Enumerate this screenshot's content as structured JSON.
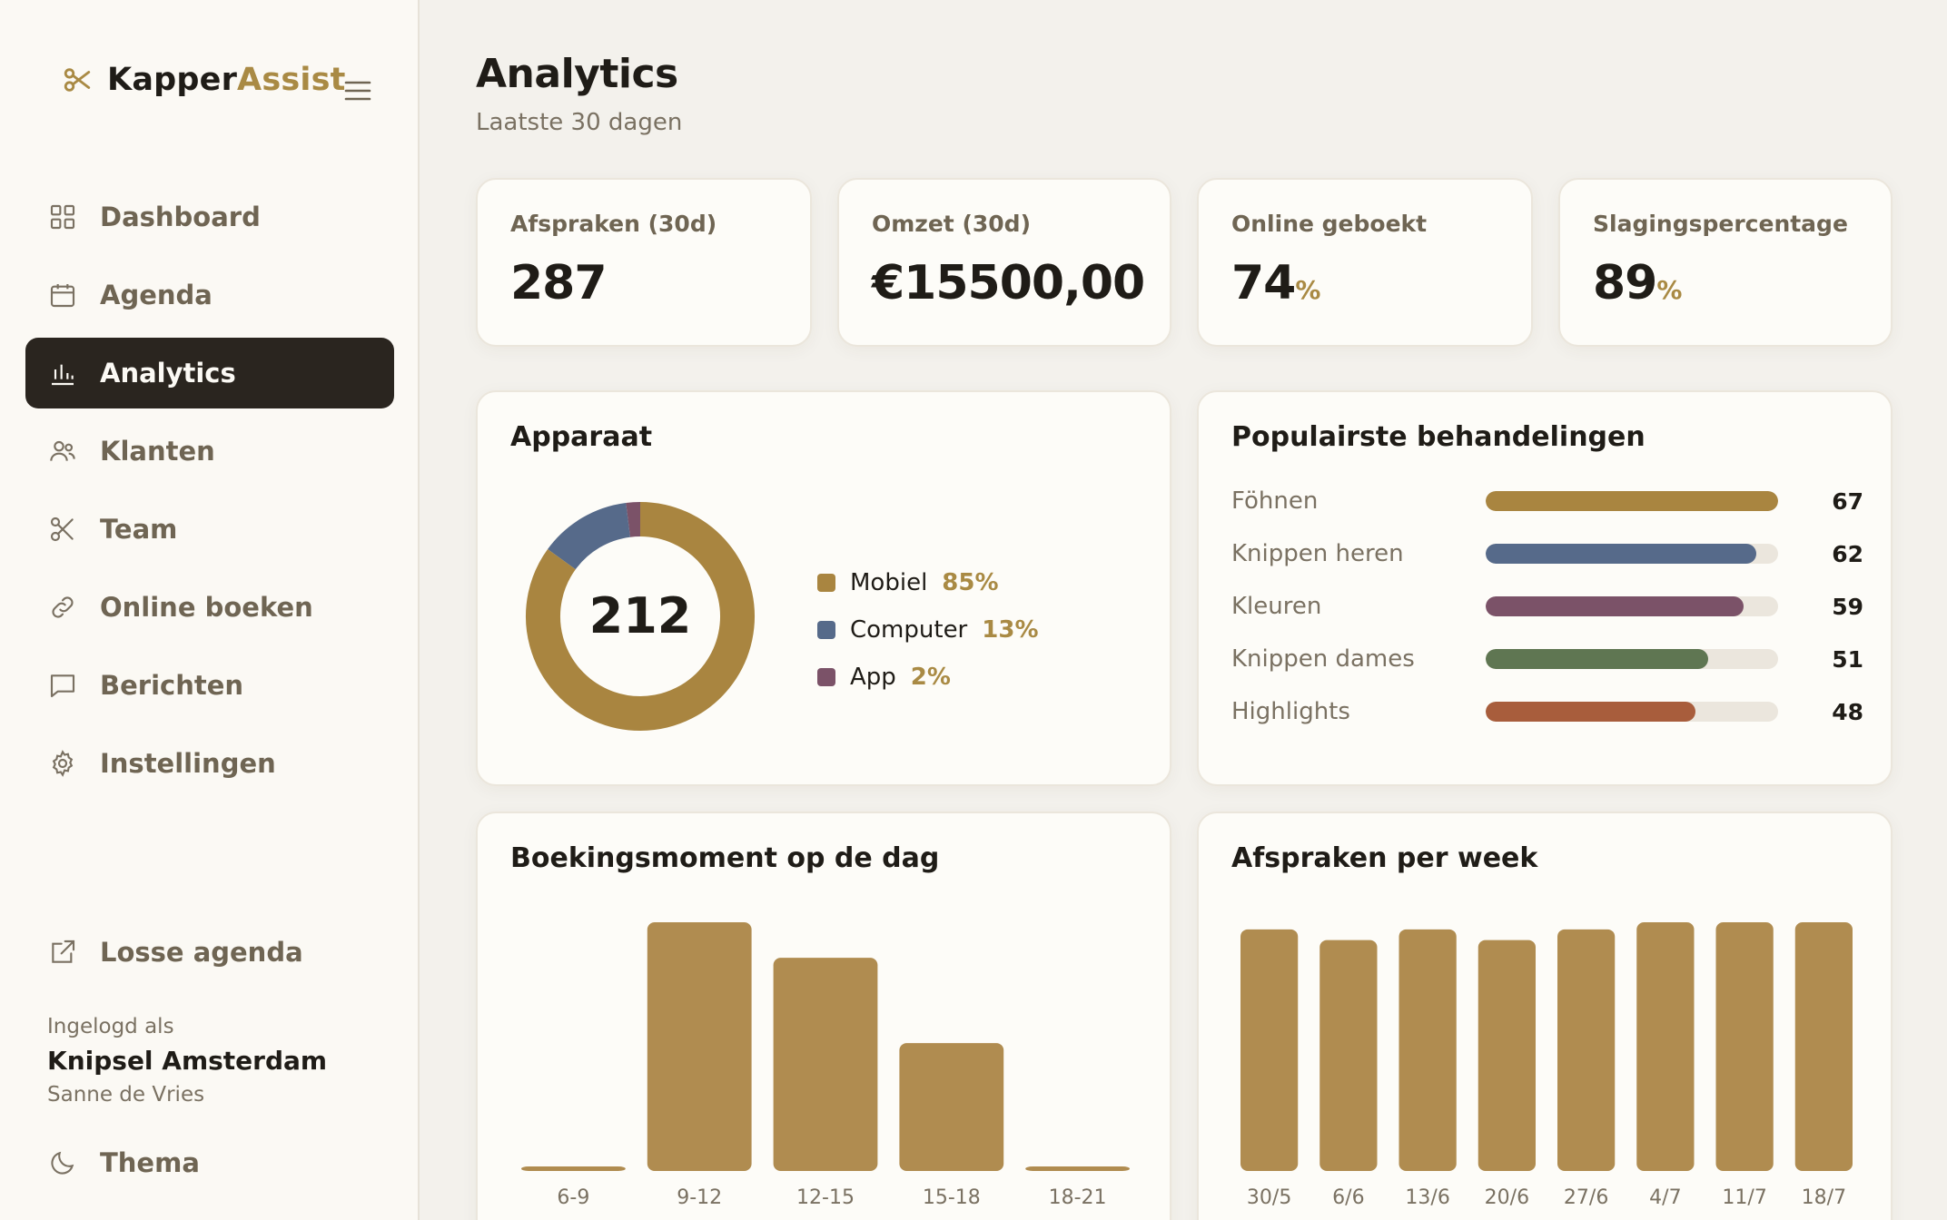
{
  "app": {
    "brand_part1": "Kapper",
    "brand_part2": "Assist"
  },
  "sidebar": {
    "items": [
      {
        "label": "Dashboard",
        "icon": "grid-icon"
      },
      {
        "label": "Agenda",
        "icon": "calendar-icon"
      },
      {
        "label": "Analytics",
        "icon": "bar-chart-icon",
        "active": true
      },
      {
        "label": "Klanten",
        "icon": "users-icon"
      },
      {
        "label": "Team",
        "icon": "scissors-icon"
      },
      {
        "label": "Online boeken",
        "icon": "link-icon"
      },
      {
        "label": "Berichten",
        "icon": "message-icon"
      },
      {
        "label": "Instellingen",
        "icon": "gear-icon"
      }
    ],
    "losse_agenda": "Losse agenda",
    "logged_in_label": "Ingelogd als",
    "salon": "Knipsel Amsterdam",
    "user": "Sanne de Vries",
    "theme_label": "Thema"
  },
  "header": {
    "title": "Analytics",
    "subtitle": "Laatste 30 dagen"
  },
  "kpis": [
    {
      "label": "Afspraken (30d)",
      "value": "287",
      "unit": ""
    },
    {
      "label": "Omzet (30d)",
      "value": "€15500,00",
      "unit": ""
    },
    {
      "label": "Online geboekt",
      "value": "74",
      "unit": "%"
    },
    {
      "label": "Slagingspercentage",
      "value": "89",
      "unit": "%"
    }
  ],
  "device": {
    "title": "Apparaat",
    "total": "212",
    "items": [
      {
        "name": "Mobiel",
        "pct": "85%",
        "value": 85,
        "color": "#a98540"
      },
      {
        "name": "Computer",
        "pct": "13%",
        "value": 13,
        "color": "#566a8a"
      },
      {
        "name": "App",
        "pct": "2%",
        "value": 2,
        "color": "#7b5268"
      }
    ]
  },
  "treatments": {
    "title": "Populairste behandelingen",
    "max": 67,
    "items": [
      {
        "name": "Föhnen",
        "value": "67",
        "color": "#a98540"
      },
      {
        "name": "Knippen heren",
        "value": "62",
        "color": "#566a8a"
      },
      {
        "name": "Kleuren",
        "value": "59",
        "color": "#7b5268"
      },
      {
        "name": "Knippen dames",
        "value": "51",
        "color": "#5f7652"
      },
      {
        "name": "Highlights",
        "value": "48",
        "color": "#a85d3c"
      }
    ]
  },
  "chart_data": [
    {
      "type": "bar",
      "title": "Boekingsmoment op de dag",
      "categories": [
        "6-9",
        "9-12",
        "12-15",
        "15-18",
        "18-21"
      ],
      "values": [
        1,
        70,
        60,
        36,
        1
      ],
      "ylim": [
        0,
        70
      ],
      "color": "#b08c50"
    },
    {
      "type": "bar",
      "title": "Afspraken per week",
      "categories": [
        "30/5",
        "6/6",
        "13/6",
        "20/6",
        "27/6",
        "4/7",
        "11/7",
        "18/7"
      ],
      "values": [
        68,
        65,
        68,
        65,
        68,
        70,
        70,
        70
      ],
      "ylim": [
        0,
        70
      ],
      "color": "#b08c50"
    }
  ]
}
